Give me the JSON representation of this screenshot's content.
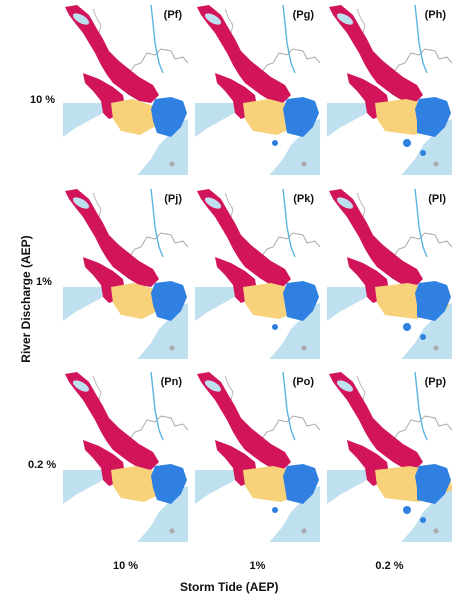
{
  "panels": [
    {
      "label": "(Pf)"
    },
    {
      "label": "(Pg)"
    },
    {
      "label": "(Ph)"
    },
    {
      "label": "(Pj)"
    },
    {
      "label": "(Pk)"
    },
    {
      "label": "(Pl)"
    },
    {
      "label": "(Pn)"
    },
    {
      "label": "(Po)"
    },
    {
      "label": "(Pp)"
    }
  ],
  "rows": {
    "labels": [
      "10 %",
      "1%",
      "0.2 %"
    ],
    "axis_title": "River Discharge (AEP)"
  },
  "columns": {
    "labels": [
      "10 %",
      "1%",
      "0.2 %"
    ],
    "axis_title": "Storm Tide (AEP)"
  },
  "colors": {
    "sea": "#bfe0ef",
    "land": "#ffffff",
    "river_flood": "#d2145a",
    "compound_flood": "#f7d27a",
    "coastal_flood": "#2f80e0",
    "river_line": "#5ab4e0",
    "border": "#a9a9a9"
  }
}
